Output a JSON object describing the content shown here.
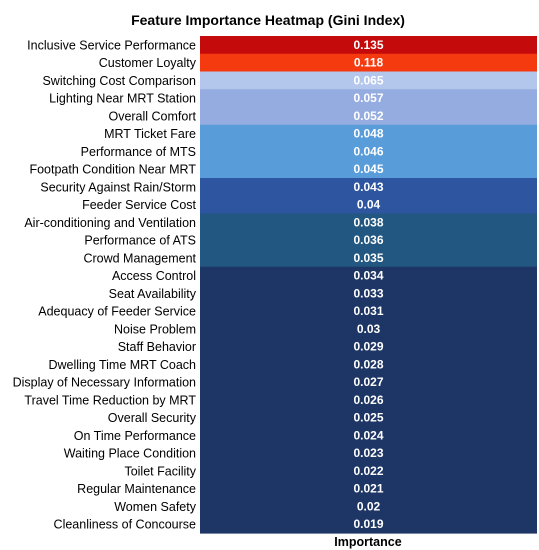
{
  "chart_data": {
    "type": "heatmap",
    "title": "Feature Importance Heatmap (Gini Index)",
    "xlabel": "Importance",
    "ylabel": "",
    "colormap": "RdBu_r-like (high = red, low = dark navy)",
    "colors": {
      "0.135": "#c40a0a",
      "0.118": "#f53a10",
      "0.065": "#b3c6ec",
      "0.057": "#95ace0",
      "0.052": "#95ace0",
      "0.048": "#589cda",
      "0.046": "#589cda",
      "0.045": "#589cda",
      "0.043": "#2e56a0",
      "0.04": "#2e56a0",
      "0.038": "#215780",
      "0.036": "#215780",
      "0.035": "#215780",
      "low": "#1d3665"
    },
    "categories": [
      "Inclusive Service Performance",
      "Customer Loyalty",
      "Switching Cost Comparison",
      "Lighting Near MRT Station",
      "Overall Comfort",
      "MRT Ticket Fare",
      "Performance of MTS",
      "Footpath Condition Near MRT",
      "Security Against Rain/Storm",
      "Feeder Service Cost",
      "Air-conditioning and Ventilation",
      "Performance of ATS",
      "Crowd Management",
      "Access Control",
      "Seat Availability",
      "Adequacy of Feeder Service",
      "Noise Problem",
      "Staff Behavior",
      "Dwelling Time MRT Coach",
      "Display of Necessary Information",
      "Travel Time Reduction by MRT",
      "Overall Security",
      "On Time Performance",
      "Waiting Place Condition",
      "Toilet Facility",
      "Regular Maintenance",
      "Women Safety",
      "Cleanliness of Concourse"
    ],
    "values": [
      0.135,
      0.118,
      0.065,
      0.057,
      0.052,
      0.048,
      0.046,
      0.045,
      0.043,
      0.04,
      0.038,
      0.036,
      0.035,
      0.034,
      0.033,
      0.031,
      0.03,
      0.029,
      0.028,
      0.027,
      0.026,
      0.025,
      0.024,
      0.023,
      0.022,
      0.021,
      0.02,
      0.019
    ],
    "value_labels": [
      "0.135",
      "0.118",
      "0.065",
      "0.057",
      "0.052",
      "0.048",
      "0.046",
      "0.045",
      "0.043",
      "0.04",
      "0.038",
      "0.036",
      "0.035",
      "0.034",
      "0.033",
      "0.031",
      "0.03",
      "0.029",
      "0.028",
      "0.027",
      "0.026",
      "0.025",
      "0.024",
      "0.023",
      "0.022",
      "0.021",
      "0.02",
      "0.019"
    ]
  }
}
